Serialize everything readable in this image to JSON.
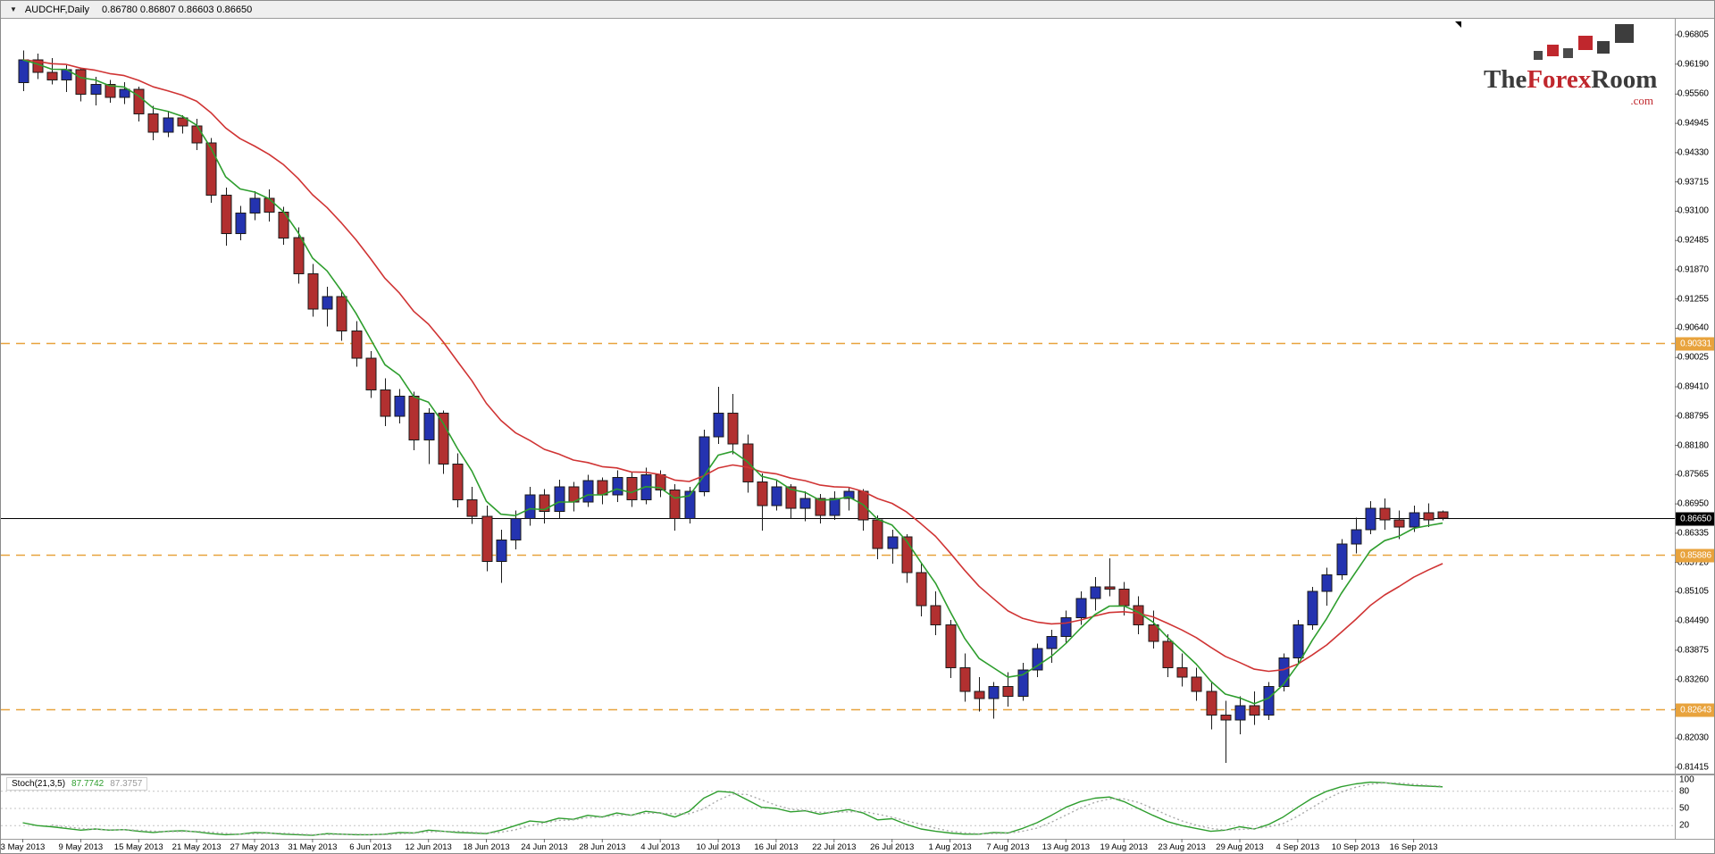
{
  "titlebar": {
    "menu_icon": "▼",
    "symbol": "AUDCHF,Daily",
    "ohlc_text": "0.86780 0.86807 0.86603 0.86650"
  },
  "logo": {
    "part1": "The",
    "part2": "Forex",
    "part3": "Room",
    "dotcom": ".com",
    "red": "#c0272d",
    "dark": "#3b3b3b"
  },
  "stoch_panel": {
    "name": "Stoch(21,3,5)",
    "main_value": "87.7742",
    "signal_value": "87.3757",
    "axis_labels": [
      "100",
      "80",
      "50",
      "20"
    ],
    "level_lines": [
      80,
      50,
      20
    ]
  },
  "chart_data": {
    "type": "candlestick",
    "title": "AUDCHF, Daily",
    "ylim": [
      0.81415,
      0.96805
    ],
    "grid": false,
    "price_axis_labels": [
      "0.96805",
      "0.96190",
      "0.95560",
      "0.94945",
      "0.94330",
      "0.93715",
      "0.93100",
      "0.92485",
      "0.91870",
      "0.91255",
      "0.90640",
      "0.90025",
      "0.89410",
      "0.88795",
      "0.88180",
      "0.87565",
      "0.86950",
      "0.86335",
      "0.85720",
      "0.85105",
      "0.84490",
      "0.83875",
      "0.83260",
      "0.82645",
      "0.82030",
      "0.81415"
    ],
    "date_labels": [
      {
        "text": "3 May 2013",
        "index": 0
      },
      {
        "text": "9 May 2013",
        "index": 4
      },
      {
        "text": "15 May 2013",
        "index": 8
      },
      {
        "text": "21 May 2013",
        "index": 12
      },
      {
        "text": "27 May 2013",
        "index": 16
      },
      {
        "text": "31 May 2013",
        "index": 20
      },
      {
        "text": "6 Jun 2013",
        "index": 24
      },
      {
        "text": "12 Jun 2013",
        "index": 28
      },
      {
        "text": "18 Jun 2013",
        "index": 32
      },
      {
        "text": "24 Jun 2013",
        "index": 36
      },
      {
        "text": "28 Jun 2013",
        "index": 40
      },
      {
        "text": "4 Jul 2013",
        "index": 44
      },
      {
        "text": "10 Jul 2013",
        "index": 48
      },
      {
        "text": "16 Jul 2013",
        "index": 52
      },
      {
        "text": "22 Jul 2013",
        "index": 56
      },
      {
        "text": "26 Jul 2013",
        "index": 60
      },
      {
        "text": "1 Aug 2013",
        "index": 64
      },
      {
        "text": "7 Aug 2013",
        "index": 68
      },
      {
        "text": "13 Aug 2013",
        "index": 72
      },
      {
        "text": "19 Aug 2013",
        "index": 76
      },
      {
        "text": "23 Aug 2013",
        "index": 80
      },
      {
        "text": "29 Aug 2013",
        "index": 84
      },
      {
        "text": "4 Sep 2013",
        "index": 88
      },
      {
        "text": "10 Sep 2013",
        "index": 92
      },
      {
        "text": "16 Sep 2013",
        "index": 96
      }
    ],
    "ohlc": [
      [
        0.958,
        0.9648,
        0.9562,
        0.9628
      ],
      [
        0.9628,
        0.9641,
        0.9588,
        0.9602
      ],
      [
        0.9602,
        0.9632,
        0.9576,
        0.9586
      ],
      [
        0.9586,
        0.9617,
        0.956,
        0.9607
      ],
      [
        0.9607,
        0.9612,
        0.9541,
        0.9556
      ],
      [
        0.9556,
        0.9592,
        0.9532,
        0.9576
      ],
      [
        0.9576,
        0.9586,
        0.9538,
        0.9549
      ],
      [
        0.9549,
        0.9581,
        0.9535,
        0.9566
      ],
      [
        0.9566,
        0.9572,
        0.9498,
        0.9514
      ],
      [
        0.9514,
        0.9531,
        0.9459,
        0.9476
      ],
      [
        0.9476,
        0.9521,
        0.9466,
        0.9506
      ],
      [
        0.9506,
        0.9512,
        0.9473,
        0.9489
      ],
      [
        0.9489,
        0.9504,
        0.9438,
        0.9453
      ],
      [
        0.9453,
        0.9464,
        0.9328,
        0.9344
      ],
      [
        0.9344,
        0.936,
        0.9238,
        0.9263
      ],
      [
        0.9263,
        0.9321,
        0.9249,
        0.9306
      ],
      [
        0.9306,
        0.9352,
        0.9291,
        0.9337
      ],
      [
        0.9337,
        0.9356,
        0.9288,
        0.9308
      ],
      [
        0.9308,
        0.9319,
        0.9239,
        0.9254
      ],
      [
        0.9254,
        0.9276,
        0.9158,
        0.9178
      ],
      [
        0.9178,
        0.9199,
        0.9088,
        0.9104
      ],
      [
        0.9104,
        0.9151,
        0.9068,
        0.9131
      ],
      [
        0.9131,
        0.9141,
        0.9038,
        0.9058
      ],
      [
        0.9058,
        0.9079,
        0.8983,
        0.9001
      ],
      [
        0.9001,
        0.9016,
        0.8918,
        0.8934
      ],
      [
        0.8934,
        0.8959,
        0.8858,
        0.8879
      ],
      [
        0.8879,
        0.8936,
        0.8864,
        0.8921
      ],
      [
        0.8921,
        0.8931,
        0.8808,
        0.8829
      ],
      [
        0.8829,
        0.8896,
        0.8779,
        0.8886
      ],
      [
        0.8886,
        0.8891,
        0.8758,
        0.8779
      ],
      [
        0.8779,
        0.8801,
        0.8688,
        0.8704
      ],
      [
        0.8704,
        0.8731,
        0.8653,
        0.8669
      ],
      [
        0.8669,
        0.8691,
        0.8553,
        0.8574
      ],
      [
        0.8574,
        0.8641,
        0.8529,
        0.8619
      ],
      [
        0.8619,
        0.8681,
        0.8599,
        0.8664
      ],
      [
        0.8664,
        0.8731,
        0.8649,
        0.8714
      ],
      [
        0.8714,
        0.8726,
        0.8654,
        0.8679
      ],
      [
        0.8679,
        0.8746,
        0.8664,
        0.8731
      ],
      [
        0.8731,
        0.8741,
        0.8679,
        0.8699
      ],
      [
        0.8699,
        0.8756,
        0.8689,
        0.8744
      ],
      [
        0.8744,
        0.8751,
        0.8694,
        0.8714
      ],
      [
        0.8714,
        0.8766,
        0.8699,
        0.8751
      ],
      [
        0.8751,
        0.8761,
        0.8689,
        0.8704
      ],
      [
        0.8704,
        0.8771,
        0.8694,
        0.8756
      ],
      [
        0.8756,
        0.8766,
        0.8709,
        0.8724
      ],
      [
        0.8724,
        0.8736,
        0.8639,
        0.8664
      ],
      [
        0.8664,
        0.8731,
        0.8654,
        0.8721
      ],
      [
        0.8721,
        0.8851,
        0.8711,
        0.8836
      ],
      [
        0.8836,
        0.8941,
        0.8821,
        0.8886
      ],
      [
        0.8886,
        0.8926,
        0.8799,
        0.8821
      ],
      [
        0.8821,
        0.8841,
        0.8719,
        0.8741
      ],
      [
        0.8741,
        0.8759,
        0.8639,
        0.8691
      ],
      [
        0.8691,
        0.8746,
        0.8681,
        0.8731
      ],
      [
        0.8731,
        0.8736,
        0.8664,
        0.8686
      ],
      [
        0.8686,
        0.8721,
        0.8659,
        0.8706
      ],
      [
        0.8706,
        0.8716,
        0.8654,
        0.8671
      ],
      [
        0.8671,
        0.8721,
        0.8661,
        0.8706
      ],
      [
        0.8706,
        0.8731,
        0.8681,
        0.8721
      ],
      [
        0.8721,
        0.8726,
        0.8639,
        0.8661
      ],
      [
        0.8661,
        0.8671,
        0.8579,
        0.8601
      ],
      [
        0.8601,
        0.8641,
        0.8569,
        0.8626
      ],
      [
        0.8626,
        0.8631,
        0.8529,
        0.8551
      ],
      [
        0.8551,
        0.8571,
        0.8459,
        0.8481
      ],
      [
        0.8481,
        0.8511,
        0.8419,
        0.8441
      ],
      [
        0.8441,
        0.8451,
        0.8329,
        0.8351
      ],
      [
        0.8351,
        0.8381,
        0.8279,
        0.8301
      ],
      [
        0.8301,
        0.8331,
        0.8259,
        0.8286
      ],
      [
        0.8286,
        0.8321,
        0.8244,
        0.8311
      ],
      [
        0.8311,
        0.8341,
        0.8269,
        0.8291
      ],
      [
        0.8291,
        0.8361,
        0.8281,
        0.8346
      ],
      [
        0.8346,
        0.8401,
        0.8331,
        0.8391
      ],
      [
        0.8391,
        0.8431,
        0.8361,
        0.8416
      ],
      [
        0.8416,
        0.8471,
        0.8401,
        0.8456
      ],
      [
        0.8456,
        0.8511,
        0.8441,
        0.8496
      ],
      [
        0.8496,
        0.8541,
        0.8471,
        0.8521
      ],
      [
        0.8521,
        0.8581,
        0.8501,
        0.8516
      ],
      [
        0.8516,
        0.8531,
        0.8461,
        0.8481
      ],
      [
        0.8481,
        0.8501,
        0.8421,
        0.8441
      ],
      [
        0.8441,
        0.8471,
        0.8391,
        0.8406
      ],
      [
        0.8406,
        0.8421,
        0.8331,
        0.8351
      ],
      [
        0.8351,
        0.8381,
        0.8311,
        0.8331
      ],
      [
        0.8331,
        0.8351,
        0.8281,
        0.8301
      ],
      [
        0.8301,
        0.8321,
        0.8221,
        0.8251
      ],
      [
        0.8251,
        0.8281,
        0.8151,
        0.8241
      ],
      [
        0.8241,
        0.8291,
        0.8211,
        0.8271
      ],
      [
        0.8271,
        0.8301,
        0.8231,
        0.8251
      ],
      [
        0.8251,
        0.8321,
        0.8241,
        0.8311
      ],
      [
        0.8311,
        0.8381,
        0.8301,
        0.8371
      ],
      [
        0.8371,
        0.8451,
        0.8361,
        0.8441
      ],
      [
        0.8441,
        0.8521,
        0.8431,
        0.8511
      ],
      [
        0.8511,
        0.8561,
        0.8481,
        0.8546
      ],
      [
        0.8546,
        0.8621,
        0.8536,
        0.8611
      ],
      [
        0.8611,
        0.8666,
        0.8591,
        0.8641
      ],
      [
        0.8641,
        0.8701,
        0.8631,
        0.8686
      ],
      [
        0.8686,
        0.8706,
        0.8641,
        0.8661
      ],
      [
        0.8661,
        0.8681,
        0.8621,
        0.8646
      ],
      [
        0.8646,
        0.8691,
        0.8636,
        0.8676
      ],
      [
        0.8676,
        0.8696,
        0.8646,
        0.8661
      ],
      [
        0.8678,
        0.86807,
        0.86603,
        0.8665
      ]
    ],
    "colors": {
      "bull": "#2433b0",
      "bear": "#b23030",
      "wick": "#1a1a1a"
    },
    "ma_fast": {
      "period": 5,
      "color": "#2e9e2e"
    },
    "ma_slow": {
      "period": 15,
      "color": "#d03434"
    },
    "level_color": "#e8a33d",
    "current_color": "#000000",
    "levels": [
      {
        "label": "0.90331",
        "price": 0.90331,
        "style": "level"
      },
      {
        "label": "0.86650",
        "price": 0.8665,
        "style": "current"
      },
      {
        "label": "0.85886",
        "price": 0.85886,
        "style": "level"
      },
      {
        "label": "0.82643",
        "price": 0.82643,
        "style": "level"
      }
    ],
    "stochastic": {
      "params": "21,3,5",
      "main_color": "#2e9e2e",
      "signal_color": "#aaaaaa",
      "signal_period": 3,
      "main": [
        25,
        20,
        18,
        15,
        12,
        14,
        12,
        13,
        10,
        8,
        10,
        11,
        9,
        6,
        4,
        5,
        8,
        7,
        5,
        4,
        3,
        6,
        5,
        4,
        4,
        5,
        8,
        7,
        12,
        10,
        8,
        7,
        6,
        12,
        20,
        28,
        26,
        33,
        31,
        38,
        35,
        42,
        38,
        45,
        42,
        35,
        45,
        68,
        80,
        78,
        65,
        52,
        50,
        44,
        46,
        40,
        44,
        48,
        42,
        30,
        32,
        22,
        14,
        10,
        7,
        5,
        5,
        8,
        7,
        15,
        25,
        38,
        52,
        62,
        68,
        70,
        62,
        50,
        38,
        27,
        20,
        15,
        10,
        12,
        18,
        14,
        22,
        35,
        52,
        68,
        80,
        88,
        93,
        96,
        95,
        92,
        90,
        89,
        87.77
      ]
    }
  }
}
